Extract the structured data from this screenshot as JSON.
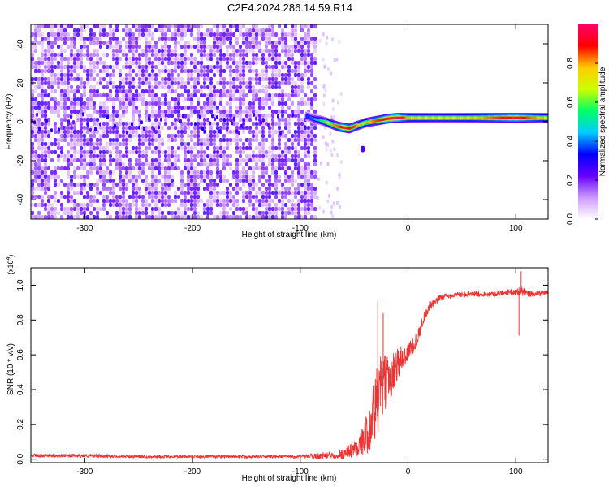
{
  "title": "C2E4.2024.286.14.59.R14",
  "chart_data": [
    {
      "type": "heatmap",
      "description_source": "spectrogram",
      "xlabel": "Height of straight line (km)",
      "ylabel": "Frequency (Hz)",
      "xlim": [
        -350,
        130
      ],
      "ylim": [
        -50,
        50
      ],
      "x_ticks": [
        -300,
        -200,
        -100,
        0,
        100
      ],
      "x_tick_labels": [
        "-300",
        "-200",
        "-100",
        "0",
        "100"
      ],
      "y_ticks": [
        -40,
        -20,
        0,
        20,
        40
      ],
      "y_tick_labels": [
        "-40",
        "-20",
        "0",
        "20",
        "40"
      ],
      "colorbar": {
        "label": "Normalized spectral amplitude",
        "range": [
          0,
          1
        ],
        "ticks": [
          0.0,
          0.2,
          0.4,
          0.6,
          0.8
        ],
        "tick_labels": [
          "0.0",
          "0.2",
          "0.4",
          "0.6",
          "0.8"
        ],
        "colors": [
          "#ffffff",
          "#cc99ff",
          "#6600ff",
          "#0000ff",
          "#00ccff",
          "#00ff66",
          "#ccff00",
          "#ffcc00",
          "#ff0000",
          "#ff0066"
        ]
      },
      "noise_region_x": [
        -350,
        -85
      ],
      "signal_trace": {
        "x": [
          -95,
          -88,
          -80,
          -75,
          -70,
          -65,
          -60,
          -55,
          -50,
          -45,
          -40,
          -35,
          -30,
          -25,
          -20,
          -15,
          -10,
          0,
          20,
          40,
          60,
          80,
          100,
          130
        ],
        "frequency": [
          3,
          1.5,
          0.5,
          -0.5,
          -1.5,
          -2.5,
          -3,
          -3.5,
          -2.5,
          -1.5,
          -0.5,
          0,
          0.5,
          1,
          1.5,
          1.8,
          2,
          2,
          2,
          2,
          2,
          2,
          2,
          2
        ],
        "amplitude": [
          0.35,
          0.4,
          0.55,
          0.7,
          0.8,
          0.85,
          0.95,
          0.9,
          0.85,
          0.75,
          0.75,
          0.8,
          0.85,
          0.9,
          0.95,
          1.0,
          1.0,
          0.75,
          0.7,
          0.7,
          0.75,
          0.85,
          0.95,
          0.7
        ]
      },
      "extra_blobs": [
        {
          "x": -42,
          "frequency": -14,
          "amplitude": 0.25
        }
      ]
    },
    {
      "type": "line",
      "xlabel": "Height of straight line (km)",
      "ylabel": "SNR (10 * v/v)",
      "y_multiplier": "(x10",
      "y_multiplier_exp": "4",
      "xlim": [
        -350,
        130
      ],
      "ylim": [
        -0.02,
        1.1
      ],
      "x_ticks": [
        -300,
        -200,
        -100,
        0,
        100
      ],
      "x_tick_labels": [
        "-300",
        "-200",
        "-100",
        "0",
        "100"
      ],
      "y_ticks": [
        0.0,
        0.2,
        0.4,
        0.6,
        0.8,
        1.0
      ],
      "y_tick_labels": [
        "0.0",
        "0.2",
        "0.4",
        "0.6",
        "0.8",
        "1.0"
      ],
      "color": "#ee3333",
      "series": [
        {
          "x": [
            -350,
            -300,
            -250,
            -200,
            -150,
            -100,
            -80,
            -60,
            -50,
            -45,
            -40,
            -35,
            -30,
            -25,
            -20,
            -15,
            -10,
            -5,
            0,
            5,
            10,
            15,
            20,
            25,
            30,
            40,
            50,
            60,
            70,
            80,
            90,
            100,
            105,
            110,
            120,
            130
          ],
          "values": [
            0.02,
            0.02,
            0.015,
            0.015,
            0.015,
            0.015,
            0.02,
            0.03,
            0.06,
            0.08,
            0.12,
            0.2,
            0.3,
            0.4,
            0.45,
            0.48,
            0.55,
            0.58,
            0.62,
            0.65,
            0.72,
            0.82,
            0.88,
            0.9,
            0.93,
            0.94,
            0.95,
            0.95,
            0.95,
            0.95,
            0.96,
            0.96,
            0.97,
            0.95,
            0.95,
            0.96
          ],
          "noise": [
            0.01,
            0.01,
            0.008,
            0.008,
            0.008,
            0.008,
            0.02,
            0.03,
            0.05,
            0.06,
            0.1,
            0.15,
            0.22,
            0.2,
            0.15,
            0.12,
            0.1,
            0.08,
            0.06,
            0.05,
            0.04,
            0.03,
            0.03,
            0.02,
            0.02,
            0.015,
            0.015,
            0.015,
            0.015,
            0.015,
            0.015,
            0.02,
            0.03,
            0.02,
            0.015,
            0.015
          ]
        }
      ],
      "spikes": [
        {
          "x": -28,
          "value": 0.91
        },
        {
          "x": -23,
          "value": 0.84
        },
        {
          "x": 105,
          "value": 1.08
        },
        {
          "x": 103,
          "value": 0.71
        }
      ]
    }
  ]
}
